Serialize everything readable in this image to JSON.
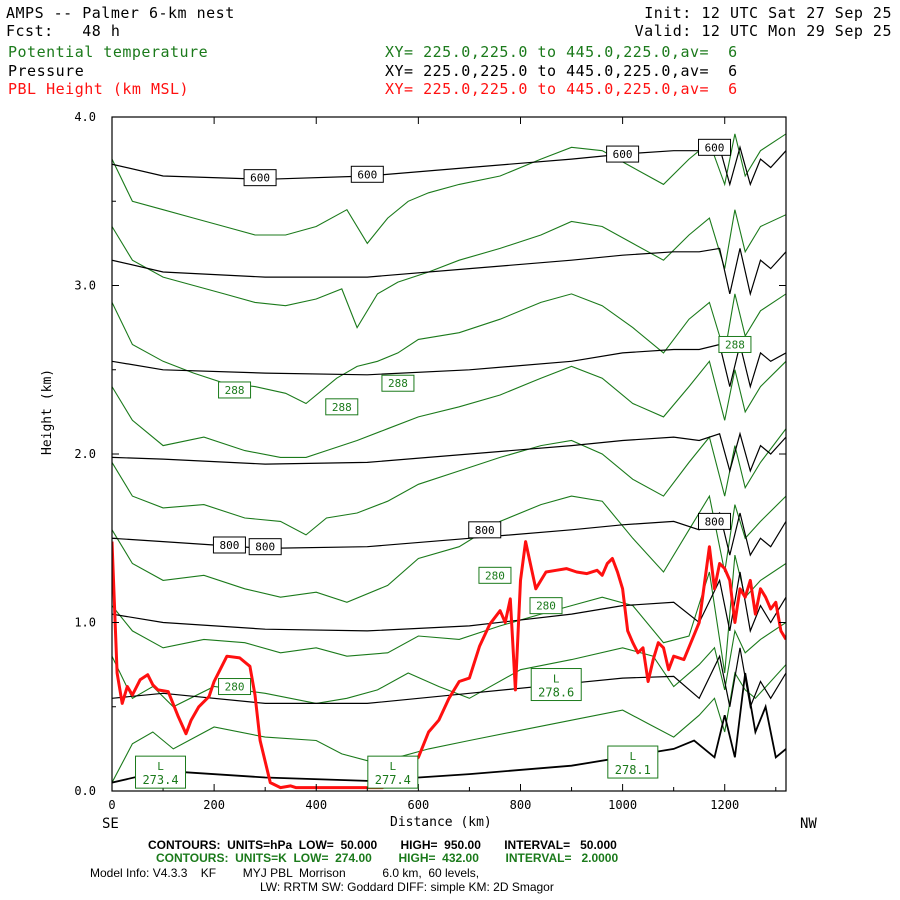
{
  "header": {
    "title": "AMPS -- Palmer 6-km nest",
    "init": "Init: 12 UTC Sat 27 Sep 25",
    "fcst_label": "Fcst:",
    "fcst_value": "48 h",
    "valid": "Valid: 12 UTC Mon 29 Sep 25",
    "lines": [
      {
        "name": "Potential temperature",
        "xy": "XY= 225.0,225.0 to 445.0,225.0,av=  6",
        "color": "#1b7a1b"
      },
      {
        "name": "Pressure",
        "xy": "XY= 225.0,225.0 to 445.0,225.0,av=  6",
        "color": "#000000"
      },
      {
        "name": "PBL Height (km MSL)",
        "xy": "XY= 225.0,225.0 to 445.0,225.0,av=  6",
        "color": "#ff1010"
      }
    ]
  },
  "chart_data": {
    "type": "line",
    "xlabel": "Distance (km)",
    "ylabel": "Height (km)",
    "xlim": [
      0,
      1320
    ],
    "ylim": [
      0,
      4.0
    ],
    "x_ticks": [
      "0",
      "200",
      "400",
      "600",
      "800",
      "1000",
      "1200"
    ],
    "y_ticks": [
      "0.0",
      "1.0",
      "2.0",
      "3.0",
      "4.0"
    ],
    "x_end_labels": {
      "left": "SE",
      "right": "NW"
    },
    "pbl_height": {
      "name": "PBL Height (km MSL)",
      "color": "#ff1010",
      "x": [
        0,
        10,
        20,
        30,
        40,
        55,
        70,
        80,
        90,
        110,
        130,
        145,
        155,
        170,
        190,
        200,
        210,
        225,
        250,
        270,
        280,
        290,
        310,
        330,
        350,
        360,
        400,
        450,
        510,
        530,
        560,
        580,
        600,
        620,
        640,
        660,
        680,
        700,
        720,
        740,
        760,
        770,
        780,
        790,
        800,
        810,
        830,
        850,
        870,
        890,
        910,
        930,
        950,
        960,
        970,
        980,
        990,
        1000,
        1010,
        1020,
        1030,
        1040,
        1050,
        1060,
        1070,
        1080,
        1090,
        1100,
        1120,
        1150,
        1170,
        1180,
        1190,
        1200,
        1210,
        1220,
        1230,
        1240,
        1250,
        1260,
        1270,
        1280,
        1290,
        1300,
        1310,
        1320
      ],
      "y": [
        1.48,
        0.7,
        0.52,
        0.62,
        0.57,
        0.66,
        0.69,
        0.63,
        0.6,
        0.59,
        0.44,
        0.34,
        0.42,
        0.5,
        0.56,
        0.65,
        0.71,
        0.8,
        0.79,
        0.74,
        0.57,
        0.3,
        0.05,
        0.02,
        0.03,
        0.02,
        0.02,
        0.02,
        0.02,
        0.02,
        0.1,
        0.15,
        0.2,
        0.35,
        0.42,
        0.55,
        0.65,
        0.67,
        0.86,
        0.99,
        1.07,
        1.0,
        1.14,
        0.6,
        1.25,
        1.48,
        1.2,
        1.3,
        1.31,
        1.32,
        1.3,
        1.29,
        1.31,
        1.28,
        1.35,
        1.38,
        1.3,
        1.2,
        0.95,
        0.88,
        0.82,
        0.85,
        0.65,
        0.78,
        0.88,
        0.85,
        0.72,
        0.8,
        0.78,
        1.0,
        1.45,
        1.2,
        1.35,
        1.32,
        1.25,
        1.0,
        1.2,
        1.15,
        1.25,
        1.05,
        1.2,
        1.15,
        1.08,
        1.12,
        0.95,
        0.9
      ]
    },
    "pressure": {
      "name": "Pressure",
      "units": "hPa",
      "color": "#000000",
      "contours": [
        {
          "level": 950,
          "x": [
            0,
            100,
            300,
            500,
            700,
            900,
            1000,
            1100,
            1140,
            1180,
            1200,
            1220,
            1240,
            1260,
            1280,
            1300,
            1320
          ],
          "y": [
            0.05,
            0.12,
            0.08,
            0.06,
            0.1,
            0.15,
            0.2,
            0.25,
            0.3,
            0.2,
            0.45,
            0.2,
            0.7,
            0.35,
            0.5,
            0.2,
            0.25
          ]
        },
        {
          "level": 900,
          "x": [
            0,
            100,
            300,
            500,
            700,
            900,
            1000,
            1100,
            1150,
            1190,
            1210,
            1230,
            1250,
            1270,
            1290,
            1320
          ],
          "y": [
            0.55,
            0.58,
            0.52,
            0.52,
            0.58,
            0.64,
            0.67,
            0.68,
            0.55,
            0.8,
            0.5,
            0.85,
            0.5,
            0.65,
            0.55,
            0.7
          ]
        },
        {
          "level": 850,
          "x": [
            0,
            100,
            300,
            500,
            700,
            900,
            1000,
            1100,
            1150,
            1190,
            1210,
            1230,
            1250,
            1270,
            1290,
            1320
          ],
          "y": [
            1.05,
            1.0,
            0.96,
            0.95,
            0.98,
            1.05,
            1.1,
            1.12,
            1.0,
            1.25,
            0.95,
            1.3,
            0.95,
            1.1,
            1.0,
            1.15
          ]
        },
        {
          "level": 800,
          "x": [
            0,
            100,
            300,
            500,
            700,
            900,
            1000,
            1100,
            1150,
            1190,
            1210,
            1230,
            1250,
            1270,
            1290,
            1320
          ],
          "y": [
            1.5,
            1.48,
            1.44,
            1.45,
            1.5,
            1.55,
            1.58,
            1.6,
            1.55,
            1.65,
            1.4,
            1.65,
            1.4,
            1.5,
            1.45,
            1.6
          ]
        },
        {
          "level": 750,
          "x": [
            0,
            100,
            300,
            500,
            700,
            900,
            1000,
            1100,
            1150,
            1190,
            1210,
            1230,
            1250,
            1270,
            1290,
            1320
          ],
          "y": [
            1.98,
            1.97,
            1.94,
            1.95,
            2.0,
            2.05,
            2.08,
            2.1,
            2.08,
            2.12,
            1.9,
            2.12,
            1.9,
            2.05,
            2.0,
            2.1
          ]
        },
        {
          "level": 700,
          "x": [
            0,
            100,
            300,
            500,
            700,
            900,
            1000,
            1100,
            1150,
            1190,
            1210,
            1230,
            1250,
            1270,
            1290,
            1320
          ],
          "y": [
            2.55,
            2.5,
            2.48,
            2.47,
            2.5,
            2.55,
            2.6,
            2.62,
            2.62,
            2.65,
            2.4,
            2.65,
            2.4,
            2.6,
            2.55,
            2.6
          ]
        },
        {
          "level": 650,
          "x": [
            0,
            100,
            300,
            500,
            700,
            900,
            1000,
            1100,
            1150,
            1190,
            1210,
            1230,
            1250,
            1270,
            1290,
            1320
          ],
          "y": [
            3.15,
            3.08,
            3.05,
            3.05,
            3.1,
            3.15,
            3.18,
            3.2,
            3.2,
            3.22,
            2.95,
            3.22,
            2.95,
            3.15,
            3.1,
            3.2
          ]
        },
        {
          "level": 600,
          "x": [
            0,
            100,
            300,
            500,
            700,
            900,
            1000,
            1100,
            1150,
            1190,
            1210,
            1230,
            1250,
            1270,
            1290,
            1320
          ],
          "y": [
            3.72,
            3.65,
            3.63,
            3.65,
            3.7,
            3.75,
            3.78,
            3.8,
            3.8,
            3.82,
            3.6,
            3.82,
            3.6,
            3.75,
            3.7,
            3.8
          ]
        }
      ],
      "labels": [
        "600",
        "600",
        "600",
        "600",
        "800",
        "800",
        "800",
        "800"
      ]
    },
    "potential_temperature": {
      "name": "Potential temperature",
      "units": "K",
      "color": "#1b7a1b",
      "contours": [
        {
          "x": [
            0,
            40,
            80,
            120,
            200,
            300,
            400,
            450,
            500,
            560,
            620,
            700,
            800,
            900,
            1000,
            1050,
            1100,
            1150,
            1180,
            1200,
            1220,
            1240,
            1260,
            1320
          ],
          "y": [
            0.05,
            0.28,
            0.35,
            0.25,
            0.38,
            0.32,
            0.3,
            0.22,
            0.18,
            0.2,
            0.25,
            0.3,
            0.36,
            0.42,
            0.48,
            0.4,
            0.32,
            0.45,
            0.55,
            0.35,
            0.7,
            0.6,
            0.55,
            0.75
          ]
        },
        {
          "x": [
            0,
            40,
            80,
            120,
            200,
            300,
            400,
            460,
            520,
            580,
            640,
            700,
            800,
            900,
            1000,
            1060,
            1100,
            1150,
            1180,
            1200,
            1220,
            1240,
            1270,
            1320
          ],
          "y": [
            0.8,
            0.55,
            0.62,
            0.5,
            0.62,
            0.58,
            0.52,
            0.55,
            0.6,
            0.7,
            0.62,
            0.55,
            0.72,
            0.78,
            0.85,
            0.8,
            0.62,
            0.75,
            0.85,
            0.6,
            0.95,
            0.82,
            0.9,
            1.0
          ]
        },
        {
          "x": [
            0,
            40,
            100,
            180,
            260,
            330,
            400,
            460,
            540,
            600,
            680,
            760,
            840,
            900,
            960,
            1020,
            1080,
            1130,
            1170,
            1200,
            1220,
            1240,
            1270,
            1320
          ],
          "y": [
            1.1,
            0.95,
            0.85,
            0.9,
            0.88,
            0.82,
            0.85,
            0.8,
            0.82,
            0.92,
            0.9,
            0.98,
            1.05,
            1.1,
            1.15,
            1.1,
            0.88,
            0.92,
            1.3,
            0.7,
            1.4,
            1.15,
            1.25,
            1.35
          ]
        },
        {
          "x": [
            0,
            40,
            100,
            180,
            260,
            330,
            400,
            460,
            540,
            600,
            680,
            760,
            840,
            900,
            960,
            1020,
            1080,
            1130,
            1170,
            1200,
            1220,
            1240,
            1270,
            1320
          ],
          "y": [
            1.55,
            1.35,
            1.25,
            1.28,
            1.2,
            1.15,
            1.18,
            1.12,
            1.22,
            1.38,
            1.45,
            1.6,
            1.7,
            1.75,
            1.72,
            1.5,
            1.3,
            1.55,
            1.75,
            1.3,
            1.7,
            1.5,
            1.6,
            1.75
          ]
        },
        {
          "x": [
            0,
            40,
            100,
            180,
            260,
            330,
            380,
            420,
            480,
            540,
            600,
            680,
            760,
            840,
            900,
            960,
            1020,
            1080,
            1130,
            1170,
            1200,
            1220,
            1240,
            1270,
            1320
          ],
          "y": [
            1.95,
            1.75,
            1.68,
            1.7,
            1.62,
            1.6,
            1.52,
            1.62,
            1.65,
            1.72,
            1.82,
            1.9,
            1.98,
            2.05,
            2.08,
            2.0,
            1.85,
            1.75,
            1.95,
            2.1,
            1.75,
            2.05,
            1.8,
            1.95,
            2.15
          ]
        },
        {
          "x": [
            0,
            40,
            100,
            180,
            260,
            330,
            380,
            420,
            480,
            540,
            600,
            680,
            760,
            840,
            900,
            960,
            1020,
            1080,
            1130,
            1170,
            1200,
            1220,
            1240,
            1270,
            1320
          ],
          "y": [
            2.4,
            2.2,
            2.05,
            2.1,
            2.02,
            1.98,
            1.98,
            2.02,
            2.08,
            2.15,
            2.22,
            2.28,
            2.35,
            2.45,
            2.52,
            2.45,
            2.3,
            2.22,
            2.4,
            2.55,
            2.2,
            2.5,
            2.25,
            2.4,
            2.55
          ]
        },
        {
          "x": [
            0,
            40,
            100,
            160,
            220,
            280,
            340,
            380,
            440,
            480,
            520,
            560,
            600,
            680,
            760,
            840,
            900,
            960,
            1020,
            1080,
            1130,
            1170,
            1200,
            1220,
            1240,
            1270,
            1320
          ],
          "y": [
            2.9,
            2.65,
            2.55,
            2.48,
            2.42,
            2.4,
            2.36,
            2.3,
            2.45,
            2.52,
            2.55,
            2.6,
            2.68,
            2.72,
            2.8,
            2.9,
            2.95,
            2.88,
            2.75,
            2.6,
            2.8,
            2.9,
            2.6,
            2.95,
            2.7,
            2.85,
            2.95
          ]
        },
        {
          "x": [
            0,
            40,
            100,
            160,
            220,
            280,
            340,
            400,
            450,
            480,
            520,
            560,
            620,
            680,
            760,
            840,
            900,
            960,
            1020,
            1080,
            1130,
            1170,
            1200,
            1220,
            1240,
            1270,
            1320
          ],
          "y": [
            3.35,
            3.15,
            3.05,
            3.0,
            2.95,
            2.9,
            2.88,
            2.92,
            2.98,
            2.75,
            2.95,
            3.02,
            3.08,
            3.15,
            3.22,
            3.3,
            3.38,
            3.35,
            3.25,
            3.15,
            3.3,
            3.4,
            3.1,
            3.45,
            3.2,
            3.35,
            3.42
          ]
        },
        {
          "x": [
            0,
            40,
            100,
            160,
            220,
            280,
            340,
            400,
            460,
            500,
            540,
            580,
            620,
            680,
            760,
            840,
            900,
            960,
            1020,
            1080,
            1130,
            1170,
            1200,
            1220,
            1240,
            1270,
            1320
          ],
          "y": [
            3.75,
            3.5,
            3.45,
            3.4,
            3.35,
            3.3,
            3.3,
            3.35,
            3.45,
            3.25,
            3.4,
            3.5,
            3.55,
            3.6,
            3.65,
            3.75,
            3.82,
            3.8,
            3.7,
            3.6,
            3.75,
            3.85,
            3.6,
            3.9,
            3.65,
            3.8,
            3.9
          ]
        }
      ],
      "labels": [
        "288",
        "288",
        "288",
        "288",
        "280",
        "280",
        "280"
      ]
    },
    "extrema_labels": [
      {
        "mark": "L",
        "value": "273.4"
      },
      {
        "mark": "L",
        "value": "277.4"
      },
      {
        "mark": "L",
        "value": "278.6"
      },
      {
        "mark": "L",
        "value": "278.1"
      }
    ]
  },
  "footer": {
    "pressure_line": "CONTOURS:  UNITS=hPa  LOW=  50.000       HIGH=  950.00       INTERVAL=   50.000",
    "theta_line": "CONTOURS:  UNITS=K  LOW=  274.00        HIGH=  432.00        INTERVAL=   2.0000",
    "model_info": "Model Info: V4.3.3    KF        MYJ PBL  Morrison           6.0 km,  60 levels,",
    "physics": "LW: RRTM SW: Goddard DIFF: simple KM: 2D Smagor"
  }
}
